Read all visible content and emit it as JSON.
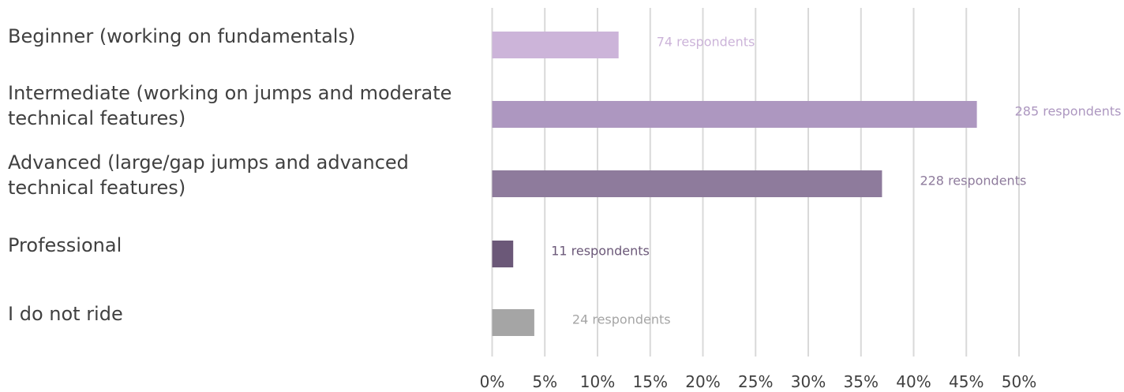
{
  "chart_data": {
    "type": "bar",
    "orientation": "horizontal",
    "categories": [
      [
        "Beginner (working on fundamentals)"
      ],
      [
        "Intermediate (working on jumps and moderate",
        "technical features)"
      ],
      [
        "Advanced (large/gap jumps and advanced",
        "technical features)"
      ],
      [
        "Professional"
      ],
      [
        "I do not ride"
      ]
    ],
    "values": [
      12,
      46,
      37,
      2,
      4
    ],
    "data_labels": [
      "74 respondents",
      "285 respondents",
      "228 respondents",
      "11 respondents",
      "24 respondents"
    ],
    "colors": [
      "#ccb4d9",
      "#ad97c0",
      "#8e7b9c",
      "#6b5878",
      "#a5a5a5"
    ],
    "label_colors": [
      "#ccb4d9",
      "#ad97c0",
      "#8e7b9c",
      "#6b5878",
      "#a5a5a5"
    ],
    "x_ticks": [
      "0%",
      "5%",
      "10%",
      "15%",
      "20%",
      "25%",
      "30%",
      "35%",
      "40%",
      "45%",
      "50%"
    ],
    "xlim": [
      0,
      50
    ],
    "grid": true,
    "legend": "none",
    "title": "",
    "xlabel": "",
    "ylabel": ""
  }
}
